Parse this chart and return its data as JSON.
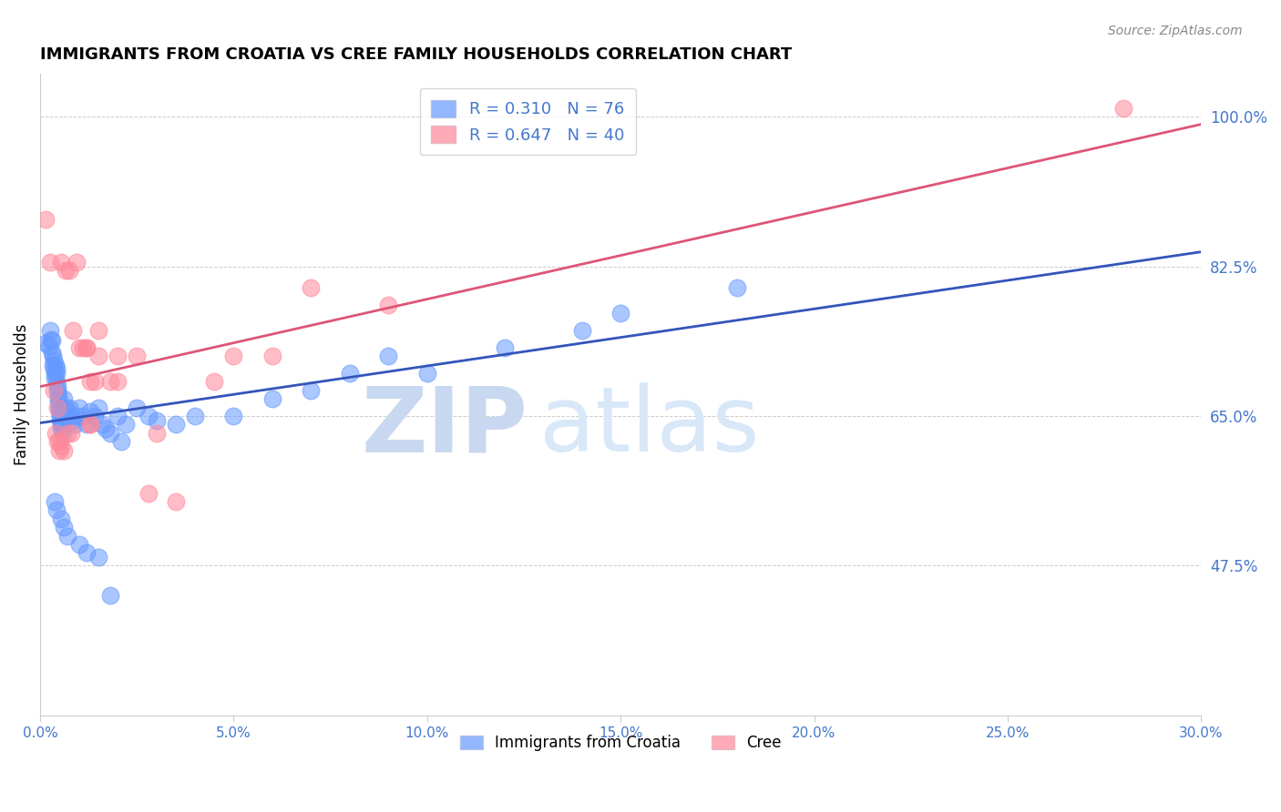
{
  "title": "IMMIGRANTS FROM CROATIA VS CREE FAMILY HOUSEHOLDS CORRELATION CHART",
  "source": "Source: ZipAtlas.com",
  "ylabel": "Family Households",
  "right_yticks": [
    47.5,
    65.0,
    82.5,
    100.0
  ],
  "xticks": [
    0.0,
    5.0,
    10.0,
    15.0,
    20.0,
    25.0,
    30.0
  ],
  "xlim": [
    0.0,
    30.0
  ],
  "ylim": [
    30.0,
    105.0
  ],
  "croatia_label": "Immigrants from Croatia",
  "cree_label": "Cree",
  "croatia_R": 0.31,
  "croatia_N": 76,
  "cree_R": 0.647,
  "cree_N": 40,
  "croatia_color": "#6699FF",
  "cree_color": "#FF8899",
  "blue_line_color": "#3355BB",
  "pink_line_color": "#DD5577",
  "right_axis_color": "#4477CC",
  "watermark_zip_color": "#C8D8F0",
  "watermark_atlas_color": "#D8E8F8",
  "watermark_text_zip": "ZIP",
  "watermark_text_atlas": "atlas",
  "background_color": "#FFFFFF",
  "croatia_x": [
    0.13,
    0.23,
    0.25,
    0.28,
    0.3,
    0.31,
    0.32,
    0.33,
    0.35,
    0.36,
    0.37,
    0.38,
    0.4,
    0.41,
    0.42,
    0.43,
    0.44,
    0.45,
    0.46,
    0.47,
    0.48,
    0.49,
    0.5,
    0.51,
    0.52,
    0.53,
    0.54,
    0.55,
    0.56,
    0.57,
    0.58,
    0.6,
    0.62,
    0.65,
    0.7,
    0.75,
    0.8,
    0.85,
    0.9,
    0.95,
    1.0,
    1.1,
    1.2,
    1.3,
    1.4,
    1.5,
    1.6,
    1.7,
    1.8,
    2.0,
    2.2,
    2.5,
    2.8,
    3.0,
    3.5,
    4.0,
    5.0,
    6.0,
    7.0,
    8.0,
    9.0,
    10.0,
    12.0,
    14.0,
    15.0,
    18.0,
    2.1,
    0.38,
    0.42,
    0.55,
    0.6,
    0.7,
    1.0,
    1.2,
    1.5,
    1.8
  ],
  "croatia_y": [
    73.5,
    73.2,
    75.0,
    74.0,
    73.8,
    72.5,
    71.0,
    72.0,
    70.5,
    71.5,
    70.0,
    69.5,
    71.0,
    70.5,
    70.0,
    69.0,
    68.5,
    68.0,
    67.5,
    67.0,
    66.5,
    66.0,
    65.5,
    65.0,
    64.5,
    64.0,
    63.5,
    66.0,
    65.0,
    64.0,
    63.0,
    67.0,
    65.0,
    66.0,
    65.5,
    66.0,
    65.0,
    64.5,
    64.0,
    65.0,
    66.0,
    65.0,
    64.0,
    65.5,
    65.0,
    66.0,
    64.0,
    63.5,
    63.0,
    65.0,
    64.0,
    66.0,
    65.0,
    64.5,
    64.0,
    65.0,
    65.0,
    67.0,
    68.0,
    70.0,
    72.0,
    70.0,
    73.0,
    75.0,
    77.0,
    80.0,
    62.0,
    55.0,
    54.0,
    53.0,
    52.0,
    51.0,
    50.0,
    49.0,
    48.5,
    44.0
  ],
  "cree_x": [
    0.15,
    0.25,
    0.35,
    0.45,
    0.55,
    0.65,
    0.75,
    0.85,
    0.95,
    1.0,
    1.1,
    1.2,
    1.3,
    1.4,
    1.5,
    1.8,
    2.0,
    2.5,
    3.0,
    3.5,
    4.5,
    5.0,
    6.0,
    7.0,
    9.0,
    1.3,
    1.3,
    0.8,
    0.5,
    0.55,
    0.6,
    0.7,
    0.4,
    0.45,
    0.5,
    1.2,
    1.5,
    2.0,
    2.8,
    28.0
  ],
  "cree_y": [
    88.0,
    83.0,
    68.0,
    66.0,
    83.0,
    82.0,
    82.0,
    75.0,
    83.0,
    73.0,
    73.0,
    73.0,
    69.0,
    69.0,
    75.0,
    69.0,
    72.0,
    72.0,
    63.0,
    55.0,
    69.0,
    72.0,
    72.0,
    80.0,
    78.0,
    64.0,
    64.0,
    63.0,
    62.0,
    61.5,
    61.0,
    63.0,
    63.0,
    62.0,
    61.0,
    73.0,
    72.0,
    69.0,
    56.0,
    101.0
  ]
}
